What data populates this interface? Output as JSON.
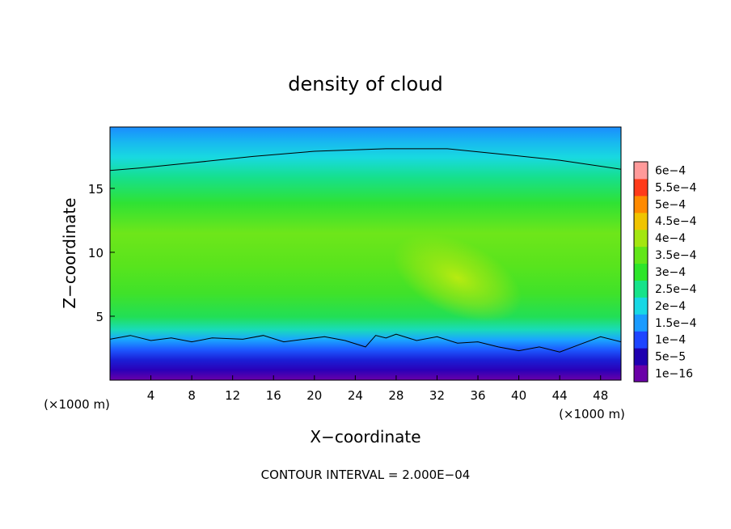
{
  "chart_data": {
    "type": "heatmap",
    "title": "density of cloud",
    "xlabel": "X−coordinate",
    "ylabel": "Z−coordinate",
    "x_unit_left": "(×1000 m)",
    "x_unit_right": "(×1000 m)",
    "xlim": [
      0,
      50
    ],
    "ylim": [
      0,
      19.8
    ],
    "x_ticks": [
      4,
      8,
      12,
      16,
      20,
      24,
      28,
      32,
      36,
      40,
      44,
      48
    ],
    "x_tick_labels": [
      "4",
      "8",
      "12",
      "16",
      "20",
      "24",
      "28",
      "32",
      "36",
      "40",
      "44",
      "48"
    ],
    "y_ticks": [
      5,
      10,
      15
    ],
    "y_tick_labels": [
      "5",
      "10",
      "15"
    ],
    "colorbar": {
      "labels": [
        "1e−16",
        "5e−5",
        "1e−4",
        "1.5e−4",
        "2e−4",
        "2.5e−4",
        "3e−4",
        "3.5e−4",
        "4e−4",
        "4.5e−4",
        "5e−4",
        "5.5e−4",
        "6e−4"
      ],
      "colors": [
        "#6a00a8",
        "#1f00b0",
        "#1e45ff",
        "#1a9bff",
        "#18d8e4",
        "#16e38a",
        "#2ee52a",
        "#62e619",
        "#a3e611",
        "#f0c400",
        "#ff8a00",
        "#ff3b1a",
        "#ff9a9a"
      ]
    },
    "footer": "CONTOUR INTERVAL = 2.000E−04",
    "top_contour_z": [
      [
        0,
        16.4
      ],
      [
        3,
        16.6
      ],
      [
        8,
        17.0
      ],
      [
        14,
        17.5
      ],
      [
        20,
        17.9
      ],
      [
        27,
        18.1
      ],
      [
        33,
        18.1
      ],
      [
        38,
        17.7
      ],
      [
        44,
        17.2
      ],
      [
        50,
        16.5
      ]
    ],
    "bottom_contour_z": [
      [
        0,
        3.2
      ],
      [
        2,
        3.5
      ],
      [
        4,
        3.1
      ],
      [
        6,
        3.3
      ],
      [
        8,
        3.0
      ],
      [
        10,
        3.3
      ],
      [
        13,
        3.2
      ],
      [
        15,
        3.5
      ],
      [
        17,
        3.0
      ],
      [
        19,
        3.2
      ],
      [
        21,
        3.4
      ],
      [
        23,
        3.1
      ],
      [
        25,
        2.6
      ],
      [
        26,
        3.5
      ],
      [
        27,
        3.3
      ],
      [
        28,
        3.6
      ],
      [
        30,
        3.1
      ],
      [
        32,
        3.4
      ],
      [
        34,
        2.9
      ],
      [
        36,
        3.0
      ],
      [
        38,
        2.6
      ],
      [
        40,
        2.3
      ],
      [
        42,
        2.6
      ],
      [
        44,
        2.2
      ],
      [
        46,
        2.8
      ],
      [
        48,
        3.4
      ],
      [
        50,
        3.0
      ]
    ],
    "peak_center_xz": [
      34,
      8
    ]
  }
}
